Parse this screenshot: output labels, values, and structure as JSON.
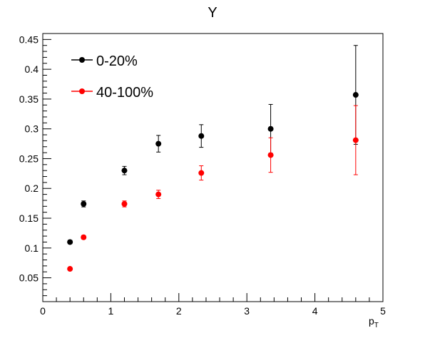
{
  "chart_data": {
    "type": "scatter",
    "title": "Y",
    "xlabel": "p",
    "xlabel_sub": "T",
    "ylabel": "",
    "xlim": [
      0,
      5
    ],
    "ylim": [
      0.01,
      0.46
    ],
    "xticks": [
      0,
      1,
      2,
      3,
      4,
      5
    ],
    "xtick_labels": [
      "0",
      "1",
      "2",
      "3",
      "4",
      "5"
    ],
    "yticks": [
      0.05,
      0.1,
      0.15,
      0.2,
      0.25,
      0.3,
      0.35,
      0.4,
      0.45
    ],
    "ytick_labels": [
      "0.05",
      "0.1",
      "0.15",
      "0.2",
      "0.25",
      "0.3",
      "0.35",
      "0.4",
      "0.45"
    ],
    "grid": false,
    "legend_position": "top-left",
    "series": [
      {
        "name": "0-20%",
        "color": "#000000",
        "x": [
          0.4,
          0.6,
          1.2,
          1.7,
          2.33,
          3.35,
          4.6
        ],
        "y": [
          0.11,
          0.174,
          0.23,
          0.275,
          0.288,
          0.3,
          0.357
        ],
        "yerr": [
          0.003,
          0.005,
          0.007,
          0.014,
          0.019,
          0.041,
          0.083
        ]
      },
      {
        "name": "40-100%",
        "color": "#ff0000",
        "x": [
          0.4,
          0.6,
          1.2,
          1.7,
          2.33,
          3.35,
          4.6
        ],
        "y": [
          0.065,
          0.118,
          0.174,
          0.19,
          0.226,
          0.256,
          0.281
        ],
        "yerr": [
          0.002,
          0.003,
          0.005,
          0.007,
          0.012,
          0.029,
          0.058
        ]
      }
    ]
  }
}
